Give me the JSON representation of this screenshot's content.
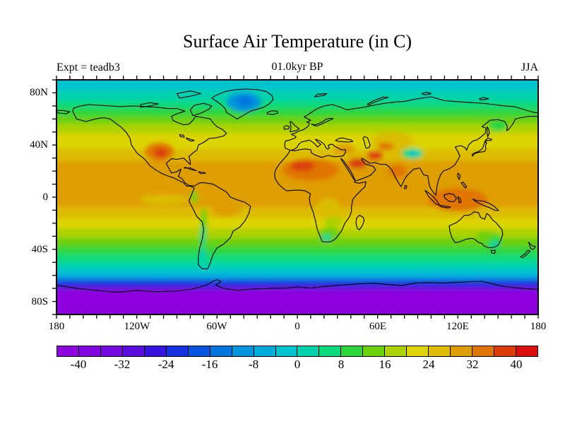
{
  "header": {
    "title": "Surface Air Temperature (in C)",
    "subtitle": "01.0kyr BP",
    "experiment_label": "Expt = teadb3",
    "season_label": "JJA"
  },
  "map": {
    "lon_axis": {
      "tick_step_deg": 10,
      "labeled_ticks": [
        {
          "label": "180",
          "lon": -180
        },
        {
          "label": "120W",
          "lon": -120
        },
        {
          "label": "60W",
          "lon": -60
        },
        {
          "label": "0",
          "lon": 0
        },
        {
          "label": "60E",
          "lon": 60
        },
        {
          "label": "120E",
          "lon": 120
        },
        {
          "label": "180",
          "lon": 180
        }
      ]
    },
    "lat_axis": {
      "tick_step_deg": 10,
      "labeled_ticks": [
        {
          "label": "80N",
          "lat": 80
        },
        {
          "label": "40N",
          "lat": 40
        },
        {
          "label": "0",
          "lat": 0
        },
        {
          "label": "40S",
          "lat": -40
        },
        {
          "label": "80S",
          "lat": -80
        }
      ]
    }
  },
  "colorbar": {
    "min": -44,
    "max": 44,
    "step": 4,
    "colors": [
      "#8E06DE",
      "#8207DE",
      "#740ADE",
      "#5C0EDE",
      "#3812DE",
      "#1532E0",
      "#0854E0",
      "#0376DE",
      "#0294DC",
      "#00ABDC",
      "#00C3D0",
      "#00D2AE",
      "#0CD97C",
      "#2ED63E",
      "#6CD008",
      "#AED104",
      "#DCD404",
      "#DCBC04",
      "#DF9E04",
      "#E07404",
      "#DC3C08",
      "#DE0D0D"
    ],
    "tick_labels": [
      {
        "label": "-40",
        "value": -40
      },
      {
        "label": "-32",
        "value": -32
      },
      {
        "label": "-24",
        "value": -24
      },
      {
        "label": "-16",
        "value": -16
      },
      {
        "label": "-8",
        "value": -8
      },
      {
        "label": "0",
        "value": 0
      },
      {
        "label": "8",
        "value": 8
      },
      {
        "label": "16",
        "value": 16
      },
      {
        "label": "24",
        "value": 24
      },
      {
        "label": "32",
        "value": 32
      },
      {
        "label": "40",
        "value": 40
      }
    ]
  },
  "chart_data": {
    "type": "heatmap",
    "title": "Surface Air Temperature (in C)",
    "subtitle": "01.0kyr BP",
    "experiment": "teadb3",
    "season": "JJA",
    "units": "degrees C",
    "projection": "equirectangular",
    "lon_range": [
      -180,
      180
    ],
    "lat_range": [
      -90,
      90
    ],
    "contour_interval_c": 4,
    "scale_range_c": [
      -44,
      44
    ],
    "legend_position": "bottom",
    "zonal_bands": [
      {
        "lat_from": 90,
        "lat_to": 82,
        "temp_c": -1
      },
      {
        "lat_from": 82,
        "lat_to": 74,
        "temp_c": 2
      },
      {
        "lat_from": 74,
        "lat_to": 68,
        "temp_c": 6
      },
      {
        "lat_from": 68,
        "lat_to": 62,
        "temp_c": 10
      },
      {
        "lat_from": 62,
        "lat_to": 56,
        "temp_c": 14
      },
      {
        "lat_from": 56,
        "lat_to": 49,
        "temp_c": 18
      },
      {
        "lat_from": 49,
        "lat_to": 37,
        "temp_c": 23
      },
      {
        "lat_from": 37,
        "lat_to": 28,
        "temp_c": 27
      },
      {
        "lat_from": 28,
        "lat_to": 2,
        "temp_c": 30
      },
      {
        "lat_from": 2,
        "lat_to": -8,
        "temp_c": 28
      },
      {
        "lat_from": -8,
        "lat_to": -16,
        "temp_c": 25
      },
      {
        "lat_from": -16,
        "lat_to": -24,
        "temp_c": 21
      },
      {
        "lat_from": -24,
        "lat_to": -31,
        "temp_c": 17.5
      },
      {
        "lat_from": -31,
        "lat_to": -38,
        "temp_c": 13
      },
      {
        "lat_from": -38,
        "lat_to": -44,
        "temp_c": 9
      },
      {
        "lat_from": -44,
        "lat_to": -50,
        "temp_c": 5.5
      },
      {
        "lat_from": -50,
        "lat_to": -55,
        "temp_c": 2
      },
      {
        "lat_from": -55,
        "lat_to": -59,
        "temp_c": -1.5
      },
      {
        "lat_from": -59,
        "lat_to": -62,
        "temp_c": -6
      },
      {
        "lat_from": -62,
        "lat_to": -64.5,
        "temp_c": -14
      },
      {
        "lat_from": -64.5,
        "lat_to": -67,
        "temp_c": -22
      },
      {
        "lat_from": -67,
        "lat_to": -69.5,
        "temp_c": -27
      },
      {
        "lat_from": -69.5,
        "lat_to": -72,
        "temp_c": -34
      },
      {
        "lat_from": -72,
        "lat_to": -90,
        "temp_c": -42
      }
    ],
    "regional_anomalies": [
      {
        "name": "greenland-cold",
        "lon": -40,
        "lat": 73,
        "rx_deg": 13,
        "ry_deg": 7.5,
        "temp_c": -10
      },
      {
        "name": "greenland-core",
        "lon": -39,
        "lat": 73.5,
        "rx_deg": 6,
        "ry_deg": 4,
        "temp_c": -15
      },
      {
        "name": "us-southwest-heat",
        "lon": -103,
        "lat": 35,
        "rx_deg": 11,
        "ry_deg": 7,
        "temp_c": 33.5
      },
      {
        "name": "us-southwest-core",
        "lon": -102,
        "lat": 34,
        "rx_deg": 5,
        "ry_deg": 3.5,
        "temp_c": 37
      },
      {
        "name": "sahara-heat",
        "lon": 10,
        "lat": 21,
        "rx_deg": 21,
        "ry_deg": 8.5,
        "temp_c": 34
      },
      {
        "name": "sahara-core",
        "lon": 4,
        "lat": 24,
        "rx_deg": 9,
        "ry_deg": 4,
        "temp_c": 38
      },
      {
        "name": "arabia-core",
        "lon": 45,
        "lat": 26,
        "rx_deg": 7,
        "ry_deg": 4,
        "temp_c": 38
      },
      {
        "name": "iran-core",
        "lon": 58,
        "lat": 32,
        "rx_deg": 6,
        "ry_deg": 3.5,
        "temp_c": 38
      },
      {
        "name": "anatolia-warm",
        "lon": 35,
        "lat": 37,
        "rx_deg": 8,
        "ry_deg": 4,
        "temp_c": 31
      },
      {
        "name": "central-asia-warm",
        "lon": 71,
        "lat": 43,
        "rx_deg": 16,
        "ry_deg": 7,
        "temp_c": 27
      },
      {
        "name": "central-asia-core",
        "lon": 66,
        "lat": 39,
        "rx_deg": 6,
        "ry_deg": 3,
        "temp_c": 33
      },
      {
        "name": "tibet-cold",
        "lon": 86,
        "lat": 33.5,
        "rx_deg": 8,
        "ry_deg": 4,
        "temp_c": 4
      },
      {
        "name": "tibet-core",
        "lon": 87,
        "lat": 33.5,
        "rx_deg": 4,
        "ry_deg": 2,
        "temp_c": -1
      },
      {
        "name": "india-warm",
        "lon": 75,
        "lat": 20,
        "rx_deg": 7,
        "ry_deg": 5,
        "temp_c": 33
      },
      {
        "name": "indonesia-warm",
        "lon": 120,
        "lat": -2,
        "rx_deg": 22,
        "ry_deg": 9,
        "temp_c": 33
      },
      {
        "name": "brazil-warm",
        "lon": -53,
        "lat": -9,
        "rx_deg": 11,
        "ry_deg": 6,
        "temp_c": 30
      },
      {
        "name": "congo-yellow",
        "lon": 23,
        "lat": -7,
        "rx_deg": 9,
        "ry_deg": 6,
        "temp_c": 25
      },
      {
        "name": "zambezi-green",
        "lon": 27,
        "lat": -19,
        "rx_deg": 7,
        "ry_deg": 4,
        "temp_c": 18
      },
      {
        "name": "south-africa-cool",
        "lon": 24,
        "lat": -28,
        "rx_deg": 8,
        "ry_deg": 5,
        "temp_c": 12
      },
      {
        "name": "south-africa-core",
        "lon": 22,
        "lat": -31,
        "rx_deg": 4,
        "ry_deg": 2.5,
        "temp_c": 5
      },
      {
        "name": "south-africa-cyan",
        "lon": 21.5,
        "lat": -31.5,
        "rx_deg": 2.5,
        "ry_deg": 1.8,
        "temp_c": 0
      },
      {
        "name": "andes-cool-north",
        "lon": -77,
        "lat": 0,
        "rx_deg": 2.5,
        "ry_deg": 5,
        "temp_c": 12
      },
      {
        "name": "andes-cool",
        "lon": -70,
        "lat": -20,
        "rx_deg": 2.5,
        "ry_deg": 12,
        "temp_c": 12
      },
      {
        "name": "andes-core",
        "lon": -70.5,
        "lat": -30,
        "rx_deg": 2,
        "ry_deg": 9,
        "temp_c": 4
      },
      {
        "name": "patagonia-cyan",
        "lon": -71,
        "lat": -45,
        "rx_deg": 2.5,
        "ry_deg": 6,
        "temp_c": 1
      },
      {
        "name": "se-australia-cool",
        "lon": 146,
        "lat": -33,
        "rx_deg": 7,
        "ry_deg": 5,
        "temp_c": 9
      },
      {
        "name": "se-australia-core",
        "lon": 147.5,
        "lat": -36.5,
        "rx_deg": 3.5,
        "ry_deg": 2.2,
        "temp_c": 2
      },
      {
        "name": "australia-green",
        "lon": 140,
        "lat": -30,
        "rx_deg": 6,
        "ry_deg": 4,
        "temp_c": 13
      },
      {
        "name": "okhotsk-cool",
        "lon": 150,
        "lat": 55,
        "rx_deg": 7,
        "ry_deg": 4.5,
        "temp_c": 8
      },
      {
        "name": "east-pacific-yellow-tongue",
        "lon": -100,
        "lat": -2,
        "rx_deg": 18,
        "ry_deg": 4,
        "temp_c": 26
      }
    ]
  }
}
